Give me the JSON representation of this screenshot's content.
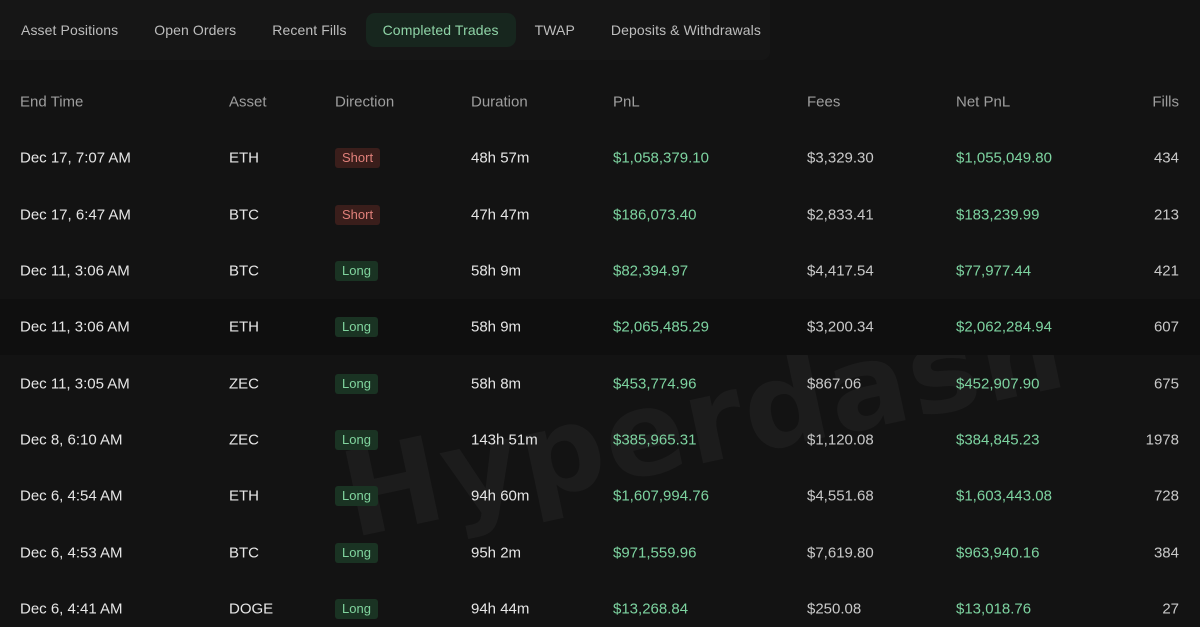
{
  "tabs": [
    {
      "label": "Asset Positions",
      "active": false
    },
    {
      "label": "Open Orders",
      "active": false
    },
    {
      "label": "Recent Fills",
      "active": false
    },
    {
      "label": "Completed Trades",
      "active": true
    },
    {
      "label": "TWAP",
      "active": false
    },
    {
      "label": "Deposits & Withdrawals",
      "active": false
    }
  ],
  "watermark": "Hyperdash",
  "table": {
    "columns": [
      "End Time",
      "Asset",
      "Direction",
      "Duration",
      "PnL",
      "Fees",
      "Net PnL",
      "Fills"
    ],
    "rows": [
      {
        "end_time": "Dec 17, 7:07 AM",
        "asset": "ETH",
        "direction": "Short",
        "duration": "48h 57m",
        "pnl": "$1,058,379.10",
        "fees": "$3,329.30",
        "net_pnl": "$1,055,049.80",
        "fills": "434"
      },
      {
        "end_time": "Dec 17, 6:47 AM",
        "asset": "BTC",
        "direction": "Short",
        "duration": "47h 47m",
        "pnl": "$186,073.40",
        "fees": "$2,833.41",
        "net_pnl": "$183,239.99",
        "fills": "213"
      },
      {
        "end_time": "Dec 11, 3:06 AM",
        "asset": "BTC",
        "direction": "Long",
        "duration": "58h 9m",
        "pnl": "$82,394.97",
        "fees": "$4,417.54",
        "net_pnl": "$77,977.44",
        "fills": "421"
      },
      {
        "end_time": "Dec 11, 3:06 AM",
        "asset": "ETH",
        "direction": "Long",
        "duration": "58h 9m",
        "pnl": "$2,065,485.29",
        "fees": "$3,200.34",
        "net_pnl": "$2,062,284.94",
        "fills": "607"
      },
      {
        "end_time": "Dec 11, 3:05 AM",
        "asset": "ZEC",
        "direction": "Long",
        "duration": "58h 8m",
        "pnl": "$453,774.96",
        "fees": "$867.06",
        "net_pnl": "$452,907.90",
        "fills": "675"
      },
      {
        "end_time": "Dec 8, 6:10 AM",
        "asset": "ZEC",
        "direction": "Long",
        "duration": "143h 51m",
        "pnl": "$385,965.31",
        "fees": "$1,120.08",
        "net_pnl": "$384,845.23",
        "fills": "1978"
      },
      {
        "end_time": "Dec 6, 4:54 AM",
        "asset": "ETH",
        "direction": "Long",
        "duration": "94h 60m",
        "pnl": "$1,607,994.76",
        "fees": "$4,551.68",
        "net_pnl": "$1,603,443.08",
        "fills": "728"
      },
      {
        "end_time": "Dec 6, 4:53 AM",
        "asset": "BTC",
        "direction": "Long",
        "duration": "95h 2m",
        "pnl": "$971,559.96",
        "fees": "$7,619.80",
        "net_pnl": "$963,940.16",
        "fills": "384"
      },
      {
        "end_time": "Dec 6, 4:41 AM",
        "asset": "DOGE",
        "direction": "Long",
        "duration": "94h 44m",
        "pnl": "$13,268.84",
        "fees": "$250.08",
        "net_pnl": "$13,018.76",
        "fills": "27"
      }
    ]
  },
  "colors": {
    "background": "#131313",
    "positive": "#7dd3a0",
    "short_badge": "#e0807a",
    "long_badge": "#80d49e",
    "active_tab": "#8fd4a7"
  }
}
